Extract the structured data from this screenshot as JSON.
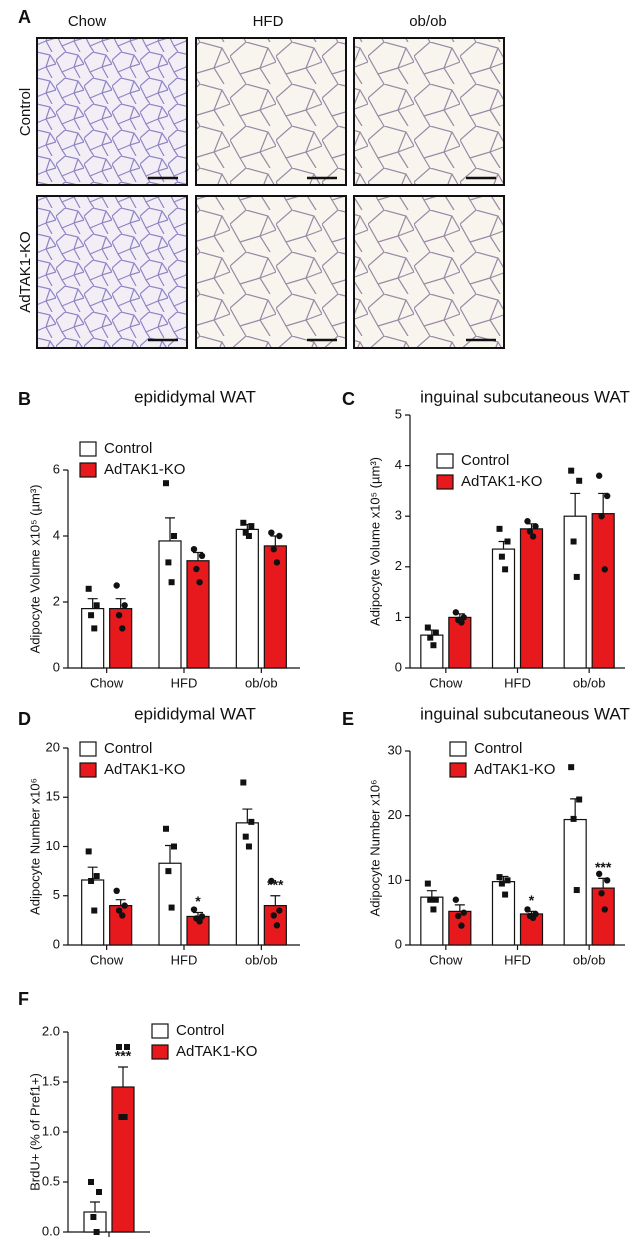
{
  "panel_a": {
    "letter": "A",
    "columns": [
      "Chow",
      "HFD",
      "ob/ob"
    ],
    "rows": [
      "Control",
      "AdTAK1-KO"
    ]
  },
  "chart_data": [
    {
      "type": "bar",
      "letter": "B",
      "title": "epididymal WAT",
      "ylabel": "Adipocyte Volume x10⁵ (µm³)",
      "categories": [
        "Chow",
        "HFD",
        "ob/ob"
      ],
      "ylim": [
        0,
        6
      ],
      "yticks": [
        0,
        2,
        4,
        6
      ],
      "series": [
        {
          "name": "Control",
          "color": "#ffffff",
          "marker": "square",
          "values": [
            1.8,
            3.85,
            4.2
          ],
          "errors": [
            0.3,
            0.7,
            0.15
          ],
          "points": [
            [
              2.4,
              1.9,
              1.6,
              1.2
            ],
            [
              5.6,
              4.0,
              3.2,
              2.6
            ],
            [
              4.4,
              4.3,
              4.1,
              4.0
            ]
          ]
        },
        {
          "name": "AdTAK1-KO",
          "color": "#e8191c",
          "marker": "circle",
          "values": [
            1.8,
            3.25,
            3.7
          ],
          "errors": [
            0.3,
            0.25,
            0.3
          ],
          "points": [
            [
              2.5,
              1.9,
              1.6,
              1.2
            ],
            [
              3.6,
              3.4,
              3.0,
              2.6
            ],
            [
              4.1,
              4.0,
              3.6,
              3.2
            ]
          ]
        }
      ]
    },
    {
      "type": "bar",
      "letter": "C",
      "title": "inguinal subcutaneous WAT",
      "ylabel": "Adipocyte Volume x10⁵ (µm³)",
      "categories": [
        "Chow",
        "HFD",
        "ob/ob"
      ],
      "ylim": [
        0,
        5
      ],
      "yticks": [
        0,
        1,
        2,
        3,
        4,
        5
      ],
      "series": [
        {
          "name": "Control",
          "color": "#ffffff",
          "marker": "square",
          "values": [
            0.65,
            2.35,
            3.0
          ],
          "errors": [
            0.1,
            0.15,
            0.45
          ],
          "points": [
            [
              0.8,
              0.7,
              0.6,
              0.45
            ],
            [
              2.75,
              2.5,
              2.2,
              1.95
            ],
            [
              3.9,
              3.7,
              2.5,
              1.8
            ]
          ]
        },
        {
          "name": "AdTAK1-KO",
          "color": "#e8191c",
          "marker": "circle",
          "values": [
            1.0,
            2.75,
            3.05
          ],
          "errors": [
            0.07,
            0.1,
            0.4
          ],
          "points": [
            [
              1.1,
              1.0,
              0.95,
              0.9
            ],
            [
              2.9,
              2.8,
              2.7,
              2.6
            ],
            [
              3.8,
              3.4,
              3.0,
              1.95
            ]
          ]
        }
      ]
    },
    {
      "type": "bar",
      "letter": "D",
      "title": "epididymal WAT",
      "ylabel": "Adipocyte Number x10⁶",
      "categories": [
        "Chow",
        "HFD",
        "ob/ob"
      ],
      "ylim": [
        0,
        20
      ],
      "yticks": [
        0,
        5,
        10,
        15,
        20
      ],
      "series": [
        {
          "name": "Control",
          "color": "#ffffff",
          "marker": "square",
          "values": [
            6.6,
            8.3,
            12.4
          ],
          "errors": [
            1.3,
            1.8,
            1.4
          ],
          "points": [
            [
              9.5,
              7.0,
              6.5,
              3.5
            ],
            [
              11.8,
              10.0,
              7.5,
              3.8
            ],
            [
              16.5,
              12.5,
              11.0,
              10.0
            ]
          ]
        },
        {
          "name": "AdTAK1-KO",
          "color": "#e8191c",
          "marker": "circle",
          "values": [
            4.0,
            2.9,
            4.0
          ],
          "errors": [
            0.6,
            0.4,
            1.0
          ],
          "points": [
            [
              5.5,
              4.0,
              3.5,
              3.0
            ],
            [
              3.6,
              2.9,
              2.7,
              2.4
            ],
            [
              6.5,
              3.5,
              3.0,
              2.0
            ]
          ],
          "significance": [
            null,
            "*",
            "***"
          ]
        }
      ]
    },
    {
      "type": "bar",
      "letter": "E",
      "title": "inguinal subcutaneous WAT",
      "ylabel": "Adipocyte Number x10⁶",
      "categories": [
        "Chow",
        "HFD",
        "ob/ob"
      ],
      "ylim": [
        0,
        30
      ],
      "yticks": [
        0,
        10,
        20,
        30
      ],
      "series": [
        {
          "name": "Control",
          "color": "#ffffff",
          "marker": "square",
          "values": [
            7.4,
            9.8,
            19.4
          ],
          "errors": [
            1.0,
            0.8,
            3.2
          ],
          "points": [
            [
              9.5,
              7.0,
              7.0,
              5.5
            ],
            [
              10.5,
              10.0,
              9.5,
              7.8
            ],
            [
              27.5,
              22.5,
              19.5,
              8.5
            ]
          ]
        },
        {
          "name": "AdTAK1-KO",
          "color": "#e8191c",
          "marker": "circle",
          "values": [
            5.2,
            4.8,
            8.8
          ],
          "errors": [
            1.0,
            0.4,
            1.5
          ],
          "points": [
            [
              7.0,
              5.0,
              4.5,
              3.0
            ],
            [
              5.5,
              4.8,
              4.5,
              4.2
            ],
            [
              11.0,
              10.0,
              8.0,
              5.5
            ]
          ],
          "significance": [
            null,
            "*",
            "***"
          ]
        }
      ]
    },
    {
      "type": "bar",
      "letter": "F",
      "ylabel": "BrdU+ (% of Pref1+)",
      "categories": [
        null
      ],
      "ylim": [
        0,
        2
      ],
      "yticks": [
        {
          "value": 0,
          "label": "0.0"
        },
        {
          "value": 0.5,
          "label": "0.5"
        },
        {
          "value": 1,
          "label": "1.0"
        },
        {
          "value": 1.5,
          "label": "1.5"
        },
        {
          "value": 2,
          "label": "2.0"
        }
      ],
      "series": [
        {
          "name": "Control",
          "color": "#ffffff",
          "marker": "square",
          "values": [
            0.2
          ],
          "errors": [
            0.1
          ],
          "points": [
            [
              0.5,
              0.4,
              0.15,
              0.0
            ]
          ]
        },
        {
          "name": "AdTAK1-KO",
          "color": "#e8191c",
          "marker": "square",
          "values": [
            1.45
          ],
          "errors": [
            0.2
          ],
          "points": [
            [
              1.85,
              1.85,
              1.15,
              1.15
            ]
          ],
          "significance": [
            "***"
          ]
        }
      ]
    }
  ]
}
